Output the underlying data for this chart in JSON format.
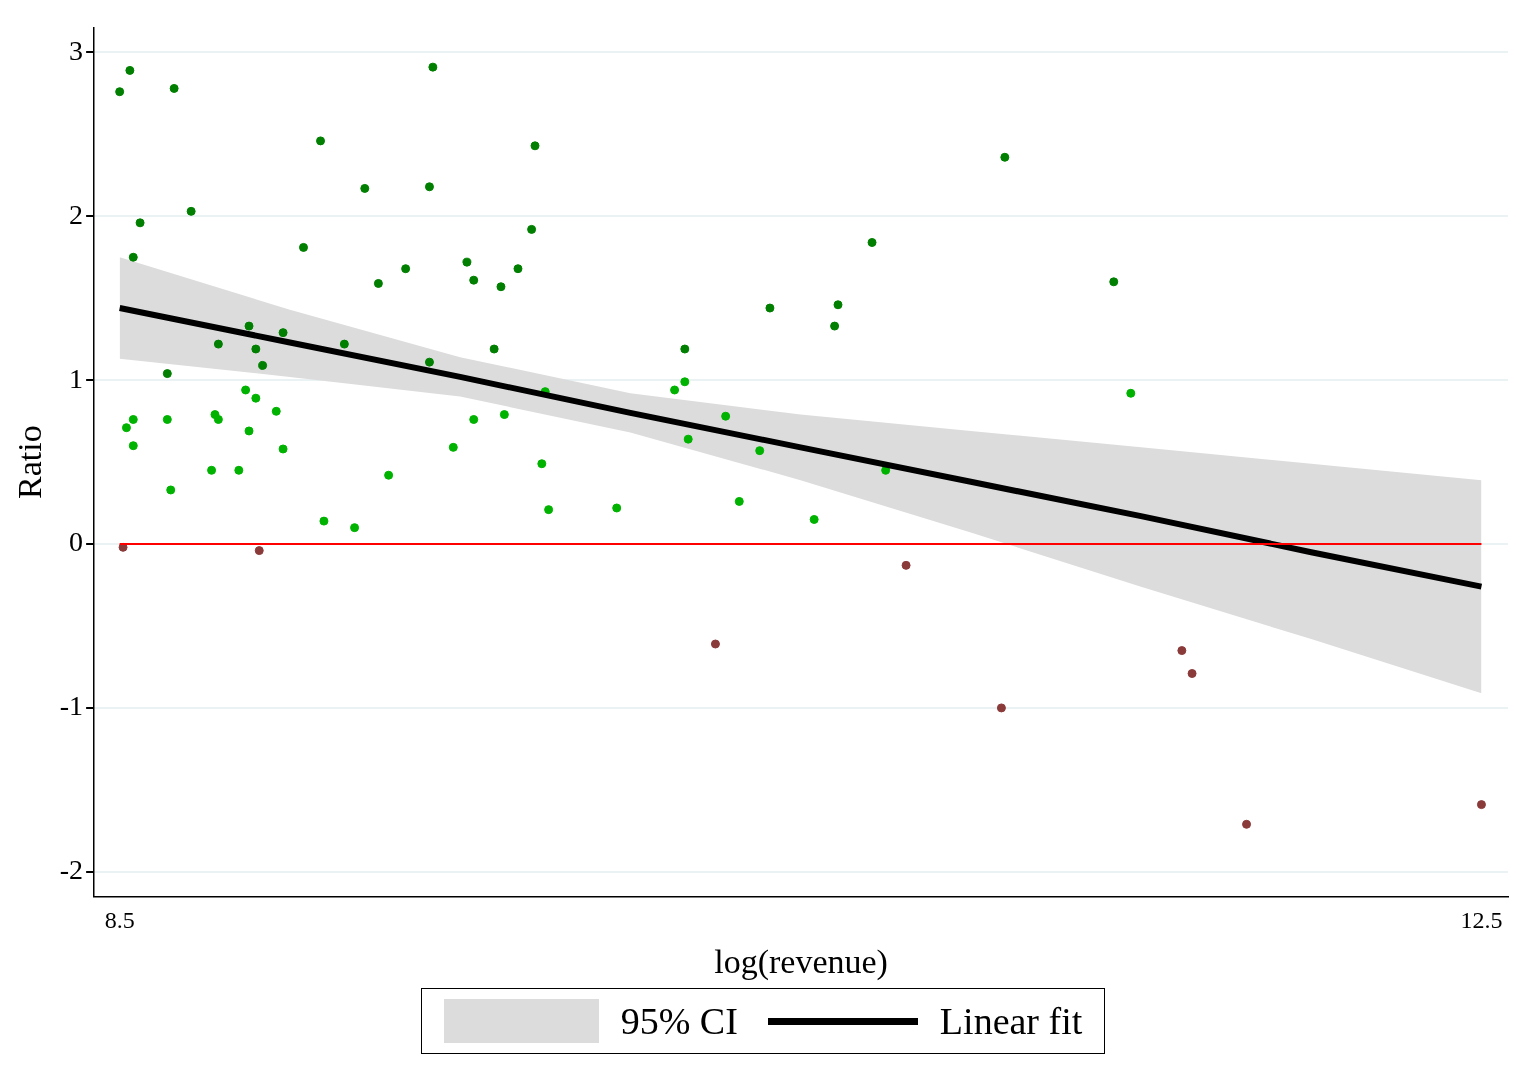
{
  "chart_data": {
    "type": "scatter",
    "xlabel": "log(revenue)",
    "ylabel": "Ratio",
    "xlim": [
      8.425,
      12.578
    ],
    "xticks": [
      8.5,
      12.5
    ],
    "ylim": [
      -2.15,
      3.15
    ],
    "yticks": [
      -2,
      -1,
      0,
      1,
      2,
      3
    ],
    "grid": "y",
    "legend": "bottom",
    "ref_lines": [
      {
        "axis": "y",
        "value": 0,
        "color": "#ff0000"
      }
    ],
    "annotations": [
      "95% CI"
    ],
    "series": [
      {
        "type": "line",
        "name": "Linear fit",
        "color": "#000000",
        "x": [
          8.5,
          9,
          9.5,
          10,
          10.5,
          11,
          11.5,
          12,
          12.5
        ],
        "values": [
          1.44,
          1.23,
          1.02,
          0.8,
          0.59,
          0.38,
          0.17,
          -0.05,
          -0.26
        ],
        "lower": [
          1.13,
          1.02,
          0.9,
          0.68,
          0.39,
          0.07,
          -0.26,
          -0.58,
          -0.91
        ],
        "upper": [
          1.75,
          1.43,
          1.14,
          0.92,
          0.79,
          0.69,
          0.59,
          0.49,
          0.39
        ],
        "marker": "none"
      },
      {
        "marker": "circle",
        "color": "#007f00",
        "x": [
          8.5,
          8.53,
          8.56,
          8.54,
          8.66,
          8.71,
          8.64,
          8.79,
          8.88,
          8.9,
          8.92,
          8.98,
          9.04,
          9.09,
          9.16,
          9.22,
          9.26,
          9.34,
          9.41,
          9.42,
          9.41,
          9.52,
          9.54,
          9.62,
          9.6,
          9.67,
          9.71,
          9.72,
          10.16,
          10.41,
          10.6,
          10.61,
          10.71,
          11.1,
          11.42
        ],
        "values": [
          2.76,
          2.89,
          1.96,
          1.75,
          2.78,
          2.03,
          1.04,
          1.22,
          1.33,
          1.19,
          1.09,
          1.29,
          1.81,
          2.46,
          1.22,
          2.17,
          1.59,
          1.68,
          2.18,
          2.91,
          1.11,
          1.72,
          1.61,
          1.57,
          1.19,
          1.68,
          1.92,
          2.43,
          1.19,
          1.44,
          1.33,
          1.46,
          1.84,
          2.36,
          1.6
        ]
      },
      {
        "marker": "circle",
        "color": "#00b300",
        "x": [
          8.52,
          8.54,
          8.54,
          8.64,
          8.65,
          8.77,
          8.78,
          8.79,
          8.85,
          8.87,
          8.88,
          8.9,
          8.96,
          8.98,
          9.1,
          9.19,
          9.29,
          9.48,
          9.54,
          9.63,
          9.74,
          9.75,
          9.76,
          9.96,
          10.13,
          10.16,
          10.17,
          10.28,
          10.32,
          10.38,
          10.54,
          10.75,
          11.47
        ],
        "values": [
          0.71,
          0.76,
          0.6,
          0.76,
          0.33,
          0.45,
          0.79,
          0.76,
          0.45,
          0.94,
          0.69,
          0.89,
          0.81,
          0.58,
          0.14,
          0.1,
          0.42,
          0.59,
          0.76,
          0.79,
          0.49,
          0.93,
          0.21,
          0.22,
          0.94,
          0.99,
          0.64,
          0.78,
          0.26,
          0.57,
          0.15,
          0.45,
          0.92
        ]
      },
      {
        "marker": "circle",
        "color": "#8b3a3a",
        "x": [
          8.51,
          8.91,
          10.25,
          10.81,
          11.09,
          11.62,
          11.65,
          11.81,
          12.5
        ],
        "values": [
          -0.02,
          -0.04,
          -0.61,
          -0.13,
          -1,
          -0.65,
          -0.79,
          -1.71,
          -1.59
        ]
      }
    ]
  }
}
